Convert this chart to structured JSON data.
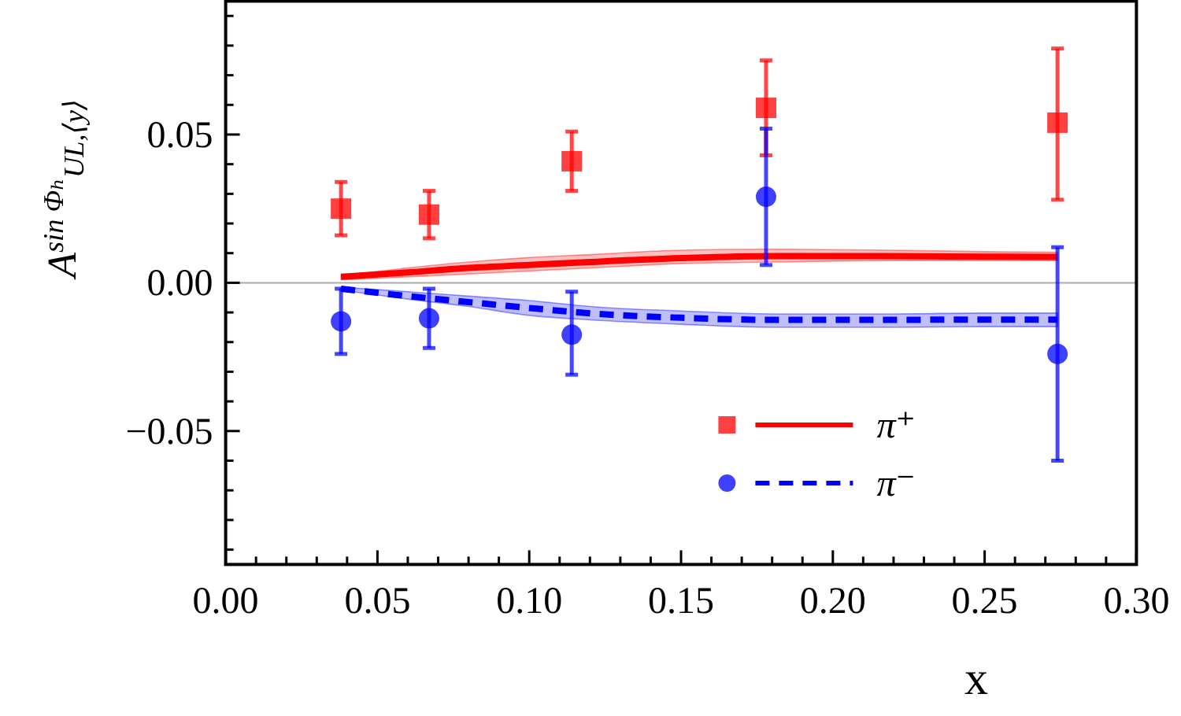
{
  "chart_data": {
    "type": "scatter",
    "xlabel": "x",
    "ylabel": "A$^{sin Φₕ}$$_{UL,⟨y⟩}$",
    "xlim": [
      0,
      0.3
    ],
    "ylim": [
      -0.095,
      0.095
    ],
    "xticks": [
      {
        "value": 0,
        "label": "0.00"
      },
      {
        "value": 0.01,
        "label": null
      },
      {
        "value": 0.02,
        "label": null
      },
      {
        "value": 0.03,
        "label": null
      },
      {
        "value": 0.04,
        "label": null
      },
      {
        "value": 0.05,
        "label": "0.05"
      },
      {
        "value": 0.06,
        "label": null
      },
      {
        "value": 0.07,
        "label": null
      },
      {
        "value": 0.08,
        "label": null
      },
      {
        "value": 0.09,
        "label": null
      },
      {
        "value": 0.1,
        "label": "0.10"
      },
      {
        "value": 0.11,
        "label": null
      },
      {
        "value": 0.12,
        "label": null
      },
      {
        "value": 0.13,
        "label": null
      },
      {
        "value": 0.14,
        "label": null
      },
      {
        "value": 0.15,
        "label": "0.15"
      },
      {
        "value": 0.16,
        "label": null
      },
      {
        "value": 0.17,
        "label": null
      },
      {
        "value": 0.18,
        "label": null
      },
      {
        "value": 0.19,
        "label": null
      },
      {
        "value": 0.2,
        "label": "0.20"
      },
      {
        "value": 0.21,
        "label": null
      },
      {
        "value": 0.22,
        "label": null
      },
      {
        "value": 0.23,
        "label": null
      },
      {
        "value": 0.24,
        "label": null
      },
      {
        "value": 0.25,
        "label": "0.25"
      },
      {
        "value": 0.26,
        "label": null
      },
      {
        "value": 0.27,
        "label": null
      },
      {
        "value": 0.28,
        "label": null
      },
      {
        "value": 0.29,
        "label": null
      },
      {
        "value": 0.3,
        "label": "0.30"
      }
    ],
    "yticks": [
      {
        "value": -0.09,
        "label": null
      },
      {
        "value": -0.08,
        "label": null
      },
      {
        "value": -0.07,
        "label": null
      },
      {
        "value": -0.06,
        "label": null
      },
      {
        "value": -0.05,
        "label": "−0.05"
      },
      {
        "value": -0.04,
        "label": null
      },
      {
        "value": -0.03,
        "label": null
      },
      {
        "value": -0.02,
        "label": null
      },
      {
        "value": -0.01,
        "label": null
      },
      {
        "value": 0,
        "label": "0.00"
      },
      {
        "value": 0.01,
        "label": null
      },
      {
        "value": 0.02,
        "label": null
      },
      {
        "value": 0.03,
        "label": null
      },
      {
        "value": 0.04,
        "label": null
      },
      {
        "value": 0.05,
        "label": "0.05"
      },
      {
        "value": 0.06,
        "label": null
      },
      {
        "value": 0.07,
        "label": null
      },
      {
        "value": 0.08,
        "label": null
      },
      {
        "value": 0.09,
        "label": null
      }
    ],
    "grid": false,
    "legend": "bottom right",
    "ref_lines": [
      {
        "axis": "y",
        "value": 0,
        "color": "#aaaaaa"
      }
    ],
    "series": [
      {
        "name": "π⁺",
        "marker": "square",
        "color": "#ff0000",
        "x": [
          0.038,
          0.067,
          0.114,
          0.178,
          0.274
        ],
        "values": [
          0.025,
          0.023,
          0.041,
          0.059,
          0.054
        ],
        "errors": [
          [
            0.016,
            0.034
          ],
          [
            0.015,
            0.031
          ],
          [
            0.031,
            0.051
          ],
          [
            0.043,
            0.075
          ],
          [
            0.028,
            0.079
          ]
        ]
      },
      {
        "type": "line",
        "line_style": "solid",
        "color": "#ff0000",
        "x": [
          0.038,
          0.06,
          0.08,
          0.1,
          0.12,
          0.15,
          0.18,
          0.22,
          0.25,
          0.274
        ],
        "values": [
          0.002,
          0.0035,
          0.005,
          0.006,
          0.007,
          0.0083,
          0.009,
          0.009,
          0.0088,
          0.0087
        ],
        "lower": [
          0.001,
          0.002,
          0.003,
          0.004,
          0.005,
          0.0065,
          0.007,
          0.0075,
          0.0075,
          0.0075
        ],
        "upper": [
          0.0025,
          0.005,
          0.007,
          0.0085,
          0.0095,
          0.011,
          0.0113,
          0.011,
          0.0105,
          0.0103
        ]
      },
      {
        "name": "π⁻",
        "marker": "circle",
        "color": "#0000ff",
        "x": [
          0.038,
          0.067,
          0.114,
          0.178,
          0.274
        ],
        "values": [
          -0.013,
          -0.012,
          -0.0175,
          0.029,
          -0.024
        ],
        "errors": [
          [
            -0.024,
            -0.002
          ],
          [
            -0.022,
            -0.002
          ],
          [
            -0.031,
            -0.003
          ],
          [
            0.006,
            0.052
          ],
          [
            -0.06,
            0.012
          ]
        ]
      },
      {
        "type": "line",
        "line_style": "dashed",
        "color": "#0000ff",
        "x": [
          0.038,
          0.06,
          0.08,
          0.1,
          0.12,
          0.15,
          0.18,
          0.22,
          0.25,
          0.274
        ],
        "values": [
          -0.002,
          -0.0045,
          -0.0065,
          -0.0085,
          -0.0103,
          -0.0118,
          -0.0125,
          -0.0125,
          -0.0124,
          -0.0124
        ],
        "lower": [
          -0.0025,
          -0.0055,
          -0.008,
          -0.011,
          -0.0125,
          -0.014,
          -0.015,
          -0.015,
          -0.0148,
          -0.0148
        ],
        "upper": [
          -0.0015,
          -0.003,
          -0.0045,
          -0.006,
          -0.008,
          -0.0095,
          -0.0105,
          -0.0105,
          -0.0102,
          -0.0102
        ]
      }
    ]
  }
}
